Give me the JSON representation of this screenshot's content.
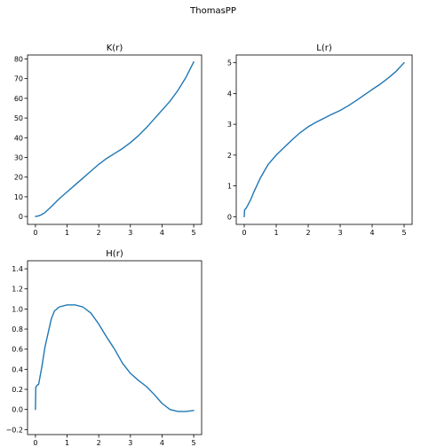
{
  "figure": {
    "suptitle": "ThomasPP"
  },
  "chart_data": [
    {
      "type": "line",
      "title": "K(r)",
      "xlabel": "",
      "ylabel": "",
      "xlim": [
        -0.25,
        5.25
      ],
      "ylim": [
        -4,
        82
      ],
      "xticks": [
        0,
        1,
        2,
        3,
        4,
        5
      ],
      "yticks": [
        0,
        10,
        20,
        30,
        40,
        50,
        60,
        70,
        80
      ],
      "grid": false,
      "color": "#1f77b4",
      "x": [
        0,
        0.1,
        0.2,
        0.3,
        0.5,
        0.75,
        1.0,
        1.25,
        1.5,
        1.75,
        2.0,
        2.25,
        2.5,
        2.75,
        3.0,
        3.25,
        3.5,
        3.75,
        4.0,
        4.25,
        4.5,
        4.75,
        5.0
      ],
      "y": [
        0,
        0.3,
        1.0,
        2.0,
        5.0,
        9.0,
        12.5,
        16.0,
        19.5,
        23.0,
        26.5,
        29.5,
        32.0,
        34.5,
        37.5,
        41.0,
        45.0,
        49.5,
        54.0,
        58.5,
        64.0,
        70.5,
        78.5
      ]
    },
    {
      "type": "line",
      "title": "L(r)",
      "xlabel": "",
      "ylabel": "",
      "xlim": [
        -0.25,
        5.25
      ],
      "ylim": [
        -0.25,
        5.25
      ],
      "xticks": [
        0,
        1,
        2,
        3,
        4,
        5
      ],
      "yticks": [
        0,
        1,
        2,
        3,
        4,
        5
      ],
      "grid": false,
      "color": "#1f77b4",
      "x": [
        0,
        0.01,
        0.05,
        0.1,
        0.2,
        0.3,
        0.5,
        0.75,
        1.0,
        1.25,
        1.5,
        1.75,
        2.0,
        2.25,
        2.5,
        2.75,
        3.0,
        3.25,
        3.5,
        3.75,
        4.0,
        4.25,
        4.5,
        4.75,
        5.0
      ],
      "y": [
        0.0,
        0.22,
        0.26,
        0.35,
        0.55,
        0.8,
        1.25,
        1.7,
        2.0,
        2.25,
        2.5,
        2.73,
        2.92,
        3.07,
        3.2,
        3.33,
        3.45,
        3.6,
        3.77,
        3.95,
        4.13,
        4.3,
        4.5,
        4.72,
        5.0
      ]
    },
    {
      "type": "line",
      "title": "H(r)",
      "xlabel": "",
      "ylabel": "",
      "xlim": [
        -0.25,
        5.25
      ],
      "ylim": [
        -0.25,
        1.48
      ],
      "xticks": [
        0,
        1,
        2,
        3,
        4,
        5
      ],
      "yticks": [
        -0.2,
        0.0,
        0.2,
        0.4,
        0.6,
        0.8,
        1.0,
        1.2,
        1.4
      ],
      "ytick_labels": [
        "−0.2",
        "0.0",
        "0.2",
        "0.4",
        "0.6",
        "0.8",
        "1.0",
        "1.2",
        "1.4"
      ],
      "grid": false,
      "color": "#1f77b4",
      "x": [
        0,
        0.01,
        0.05,
        0.1,
        0.2,
        0.3,
        0.5,
        0.6,
        0.75,
        1.0,
        1.25,
        1.5,
        1.75,
        2.0,
        2.25,
        2.5,
        2.75,
        3.0,
        3.25,
        3.5,
        3.75,
        4.0,
        4.25,
        4.5,
        4.75,
        5.0
      ],
      "y": [
        0.0,
        0.22,
        0.24,
        0.25,
        0.42,
        0.62,
        0.9,
        0.98,
        1.02,
        1.04,
        1.04,
        1.02,
        0.96,
        0.85,
        0.72,
        0.6,
        0.46,
        0.36,
        0.29,
        0.23,
        0.15,
        0.06,
        0.0,
        -0.02,
        -0.02,
        -0.01
      ]
    }
  ]
}
